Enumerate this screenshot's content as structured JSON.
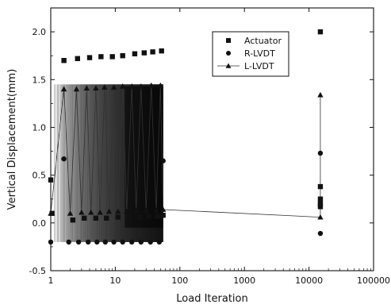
{
  "chart_data": {
    "type": "scatter",
    "xlabel": "Load Iteration",
    "ylabel": "Vertical Displacement(mm)",
    "xscale": "log",
    "xlim": [
      1,
      100000
    ],
    "ylim": [
      -0.5,
      2.25
    ],
    "grid": false,
    "legend_position": "top-right",
    "x_ticks": [
      {
        "value": 1,
        "label": "1"
      },
      {
        "value": 10,
        "label": "10"
      },
      {
        "value": 100,
        "label": "100"
      },
      {
        "value": 1000,
        "label": "1000"
      },
      {
        "value": 10000,
        "label": "10000"
      },
      {
        "value": 100000,
        "label": "100000"
      }
    ],
    "y_ticks": [
      {
        "value": -0.5,
        "label": "-0.5"
      },
      {
        "value": 0.0,
        "label": "0.0"
      },
      {
        "value": 0.5,
        "label": "0.5"
      },
      {
        "value": 1.0,
        "label": "1.0"
      },
      {
        "value": 1.5,
        "label": "1.5"
      },
      {
        "value": 2.0,
        "label": "2.0"
      }
    ],
    "dense_band": {
      "x_range": [
        1,
        55
      ],
      "y_range": [
        -0.2,
        1.45
      ],
      "color": "#000000"
    },
    "series": [
      {
        "name": "Actuator",
        "marker": "square",
        "connected": false,
        "points": [
          [
            1,
            0.45
          ],
          [
            1.05,
            0.1
          ],
          [
            1.6,
            1.7
          ],
          [
            2.2,
            0.03
          ],
          [
            2.6,
            1.72
          ],
          [
            3.3,
            0.05
          ],
          [
            4,
            1.73
          ],
          [
            5,
            0.05
          ],
          [
            6,
            1.74
          ],
          [
            7.3,
            0.05
          ],
          [
            9,
            1.74
          ],
          [
            11,
            0.06
          ],
          [
            13,
            1.75
          ],
          [
            16,
            0.06
          ],
          [
            20,
            1.77
          ],
          [
            24,
            0.06
          ],
          [
            28,
            1.78
          ],
          [
            33,
            0.07
          ],
          [
            38,
            1.79
          ],
          [
            45,
            0.07
          ],
          [
            52,
            1.8
          ],
          [
            55,
            0.08
          ],
          [
            15000,
            2.0
          ],
          [
            15000,
            0.38
          ],
          [
            15000,
            0.25
          ],
          [
            15000,
            0.2
          ],
          [
            15000,
            0.17
          ]
        ]
      },
      {
        "name": "R-LVDT",
        "marker": "circle",
        "connected": false,
        "points": [
          [
            1,
            -0.2
          ],
          [
            1.6,
            0.67
          ],
          [
            1.9,
            -0.2
          ],
          [
            2.7,
            -0.2
          ],
          [
            3.8,
            -0.2
          ],
          [
            5.2,
            -0.2
          ],
          [
            7,
            -0.2
          ],
          [
            9.5,
            -0.2
          ],
          [
            13,
            -0.2
          ],
          [
            18,
            -0.2
          ],
          [
            25,
            -0.2
          ],
          [
            35,
            -0.2
          ],
          [
            48,
            -0.2
          ],
          [
            55,
            0.65
          ],
          [
            15000,
            0.73
          ],
          [
            15000,
            0.2
          ],
          [
            15000,
            -0.11
          ]
        ]
      },
      {
        "name": "L-LVDT",
        "marker": "triangle",
        "connected": true,
        "points": [
          [
            1,
            0.1
          ],
          [
            1.6,
            1.4
          ],
          [
            2,
            0.1
          ],
          [
            2.5,
            1.4
          ],
          [
            3,
            0.11
          ],
          [
            3.6,
            1.41
          ],
          [
            4.2,
            0.11
          ],
          [
            5,
            1.41
          ],
          [
            5.8,
            0.11
          ],
          [
            6.8,
            1.42
          ],
          [
            8,
            0.12
          ],
          [
            9.5,
            1.42
          ],
          [
            11,
            0.12
          ],
          [
            13,
            1.43
          ],
          [
            15,
            0.12
          ],
          [
            18,
            1.43
          ],
          [
            21,
            0.13
          ],
          [
            25,
            1.43
          ],
          [
            30,
            0.13
          ],
          [
            36,
            1.44
          ],
          [
            43,
            0.13
          ],
          [
            50,
            1.44
          ],
          [
            55,
            0.14
          ],
          [
            15000,
            0.06
          ],
          [
            15000,
            1.34
          ]
        ]
      }
    ]
  }
}
